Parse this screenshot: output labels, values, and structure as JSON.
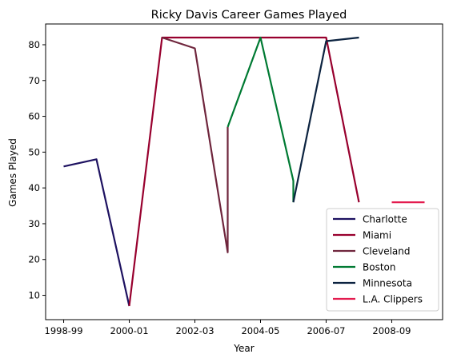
{
  "chart_data": {
    "type": "line",
    "title": "Ricky Davis Career Games Played",
    "xlabel": "Year",
    "ylabel": "Games Played",
    "x_tick_labels": [
      "1998-99",
      "2000-01",
      "2002-03",
      "2004-05",
      "2006-07",
      "2008-09"
    ],
    "y_ticks": [
      10,
      20,
      30,
      40,
      50,
      60,
      70,
      80
    ],
    "xlim": [
      -0.55,
      11.55
    ],
    "ylim": [
      3.2,
      85.8
    ],
    "grid": false,
    "legend_position": "lower-right",
    "x_axis_note": "x is season index: 0 = 1998-99, 1 = 1999-00, ... 11 = 2009-10",
    "series": [
      {
        "name": "Charlotte",
        "color": "#1d1160",
        "x": [
          0,
          1,
          2
        ],
        "y": [
          46,
          48,
          7
        ]
      },
      {
        "name": "Miami",
        "color": "#98002e",
        "x": [
          2,
          3,
          8,
          9
        ],
        "y": [
          7,
          82,
          82,
          36
        ]
      },
      {
        "name": "Cleveland",
        "color": "#6f263d",
        "x": [
          3,
          4,
          5,
          5
        ],
        "y": [
          82,
          79,
          22,
          57
        ]
      },
      {
        "name": "Boston",
        "color": "#007a33",
        "x": [
          5,
          6,
          7,
          7
        ],
        "y": [
          57,
          82,
          42,
          36
        ]
      },
      {
        "name": "Minnesota",
        "color": "#0c2340",
        "x": [
          7,
          8,
          9
        ],
        "y": [
          36,
          81,
          82
        ]
      },
      {
        "name": "L.A. Clippers",
        "color": "#e31c4f",
        "x": [
          10,
          11
        ],
        "y": [
          36,
          36
        ]
      }
    ]
  }
}
